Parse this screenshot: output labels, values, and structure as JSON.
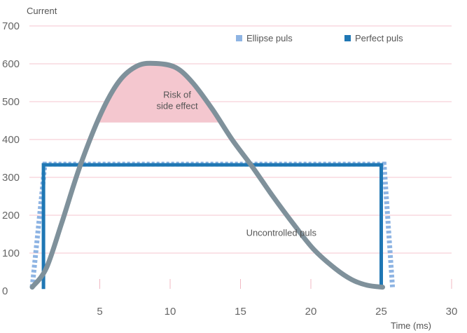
{
  "chart_data": {
    "type": "line",
    "ylabel": "Current",
    "xlabel": "Time (ms)",
    "xlim": [
      0,
      30
    ],
    "ylim": [
      0,
      700
    ],
    "x_ticks": [
      "5",
      "10",
      "15",
      "20",
      "25",
      "30"
    ],
    "y_ticks": [
      "0",
      "100",
      "200",
      "300",
      "400",
      "500",
      "600",
      "700"
    ],
    "grid": "horizontal",
    "legend_position": "top-right",
    "legend": [
      {
        "label": "Ellipse puls",
        "color": "#8eb4e3"
      },
      {
        "label": "Perfect puls",
        "color": "#1f77b4"
      }
    ],
    "series": [
      {
        "name": "Ellipse puls",
        "color": "#8eb4e3",
        "style": "dotted",
        "x": [
          0.2,
          1.1,
          25.2,
          25.8
        ],
        "y": [
          10,
          335,
          335,
          10
        ]
      },
      {
        "name": "Perfect puls",
        "color": "#1f77b4",
        "style": "solid",
        "x": [
          1.0,
          1.0,
          25.0,
          25.0
        ],
        "y": [
          5,
          333,
          333,
          5
        ]
      },
      {
        "name": "Uncontrolled puls",
        "color": "#7f919b",
        "style": "solid",
        "x": [
          0.2,
          1.2,
          2.3,
          3.6,
          5.1,
          6.4,
          7.7,
          9.0,
          10.4,
          11.6,
          13.0,
          14.4,
          15.8,
          17.3,
          18.8,
          20.2,
          21.7,
          22.9,
          24.0,
          25.1
        ],
        "y": [
          10,
          60,
          180,
          330,
          470,
          555,
          595,
          601,
          590,
          550,
          480,
          400,
          330,
          250,
          175,
          110,
          60,
          30,
          15,
          10
        ]
      }
    ],
    "annotations": [
      {
        "text": [
          "Risk of",
          "side effect"
        ],
        "x": 10.5,
        "y": 510
      },
      {
        "text": [
          "Uncontrolled puls"
        ],
        "x": 17.9,
        "y": 145
      }
    ],
    "shaded_region": {
      "color": "#f4c7cf",
      "y_threshold": 445
    }
  }
}
